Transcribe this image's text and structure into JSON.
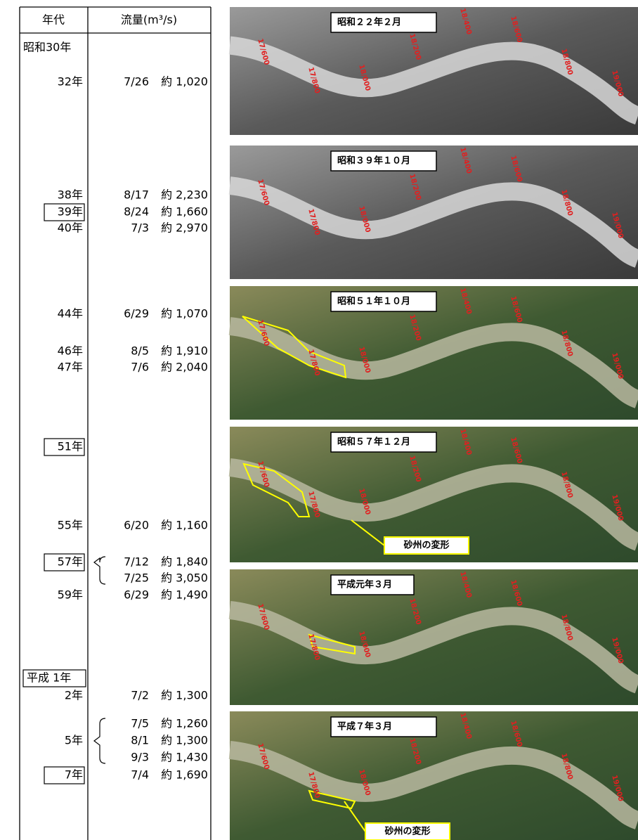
{
  "table": {
    "header": {
      "year": "年代",
      "flow": "流量(m³/s)"
    },
    "rows": [
      {
        "year": "昭和30年",
        "flows": []
      },
      {
        "year": "32年",
        "flows": [
          {
            "date": "7/26",
            "amount": "約 1,020"
          }
        ]
      },
      {
        "year": "38年",
        "flows": [
          {
            "date": "8/17",
            "amount": "約 2,230"
          }
        ]
      },
      {
        "year": "39年",
        "flows": [
          {
            "date": "8/24",
            "amount": "約 1,660"
          }
        ]
      },
      {
        "year": "40年",
        "flows": [
          {
            "date": "7/3",
            "amount": "約 2,970"
          }
        ]
      },
      {
        "year": "44年",
        "flows": [
          {
            "date": "6/29",
            "amount": "約 1,070"
          }
        ]
      },
      {
        "year": "46年",
        "flows": [
          {
            "date": "8/5",
            "amount": "約 1,910"
          }
        ]
      },
      {
        "year": "47年",
        "flows": [
          {
            "date": "7/6",
            "amount": "約 2,040"
          }
        ]
      },
      {
        "year": "51年",
        "flows": []
      },
      {
        "year": "55年",
        "flows": [
          {
            "date": "6/20",
            "amount": "約 1,160"
          }
        ]
      },
      {
        "year": "57年",
        "flows": [
          {
            "date": "7/12",
            "amount": "約 1,840"
          },
          {
            "date": "7/25",
            "amount": "約 3,050"
          }
        ]
      },
      {
        "year": "59年",
        "flows": [
          {
            "date": "6/29",
            "amount": "約 1,490"
          }
        ]
      },
      {
        "year": "平成 1年",
        "flows": []
      },
      {
        "year": "2年",
        "flows": [
          {
            "date": "7/2",
            "amount": "約 1,300"
          }
        ]
      },
      {
        "year": "5年",
        "flows": [
          {
            "date": "7/5",
            "amount": "約 1,260"
          },
          {
            "date": "8/1",
            "amount": "約 1,300"
          },
          {
            "date": "9/3",
            "amount": "約 1,430"
          }
        ]
      },
      {
        "year": "7年",
        "flows": [
          {
            "date": "7/4",
            "amount": "約 1,690"
          }
        ]
      }
    ]
  },
  "photos": [
    {
      "title": "昭和２２年２月",
      "stations": [
        "17/600",
        "17/800",
        "18/000",
        "18/200",
        "18/400",
        "18/600",
        "18/800",
        "19/000"
      ]
    },
    {
      "title": "昭和３９年１０月",
      "stations": [
        "17/600",
        "17/800",
        "18/000",
        "18/200",
        "18/400",
        "18/600",
        "18/800",
        "19/000"
      ]
    },
    {
      "title": "昭和５１年１０月",
      "stations": [
        "17/600",
        "17/800",
        "18/000",
        "18/200",
        "18/400",
        "18/600",
        "18/800",
        "19/000"
      ]
    },
    {
      "title": "昭和５７年１２月",
      "stations": [
        "17/600",
        "17/800",
        "18/000",
        "18/200",
        "18/400",
        "18/600",
        "18/800",
        "19/000"
      ],
      "callout": "砂州の変形"
    },
    {
      "title": "平成元年３月",
      "stations": [
        "17/600",
        "17/800",
        "18/000",
        "18/200",
        "18/400",
        "18/600",
        "18/800",
        "19/000"
      ]
    },
    {
      "title": "平成７年３月",
      "stations": [
        "17/600",
        "17/800",
        "18/000",
        "18/200",
        "18/400",
        "18/600",
        "18/800",
        "19/000"
      ],
      "callout": "砂州の変形"
    }
  ]
}
